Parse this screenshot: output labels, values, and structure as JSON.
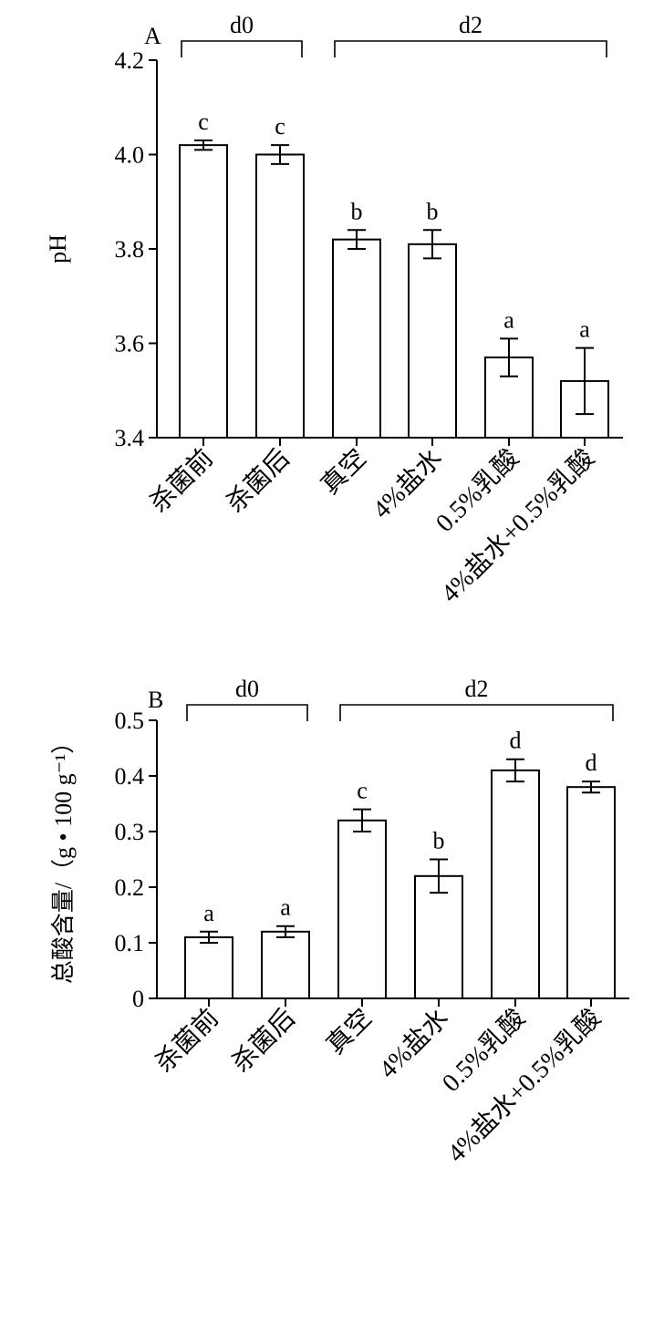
{
  "chart_data": [
    {
      "type": "bar",
      "panel_label": "A",
      "ylabel": "pH",
      "ylim": [
        3.4,
        4.2
      ],
      "yticks": [
        "3.4",
        "3.6",
        "3.8",
        "4.0",
        "4.2"
      ],
      "categories": [
        "杀菌前",
        "杀菌后",
        "真空",
        "4%盐水",
        "0.5%乳酸",
        "4%盐水+0.5%乳酸"
      ],
      "values": [
        4.02,
        4.0,
        3.82,
        3.81,
        3.57,
        3.52
      ],
      "errors": [
        0.01,
        0.02,
        0.02,
        0.03,
        0.04,
        0.07
      ],
      "significance": [
        "c",
        "c",
        "b",
        "b",
        "a",
        "a"
      ],
      "groups": [
        {
          "label": "d0",
          "start": 0,
          "end": 1
        },
        {
          "label": "d2",
          "start": 2,
          "end": 5
        }
      ]
    },
    {
      "type": "bar",
      "panel_label": "B",
      "ylabel": "总酸含量/（g • 100 g⁻¹）",
      "ylim": [
        0,
        0.5
      ],
      "yticks": [
        "0",
        "0.1",
        "0.2",
        "0.3",
        "0.4",
        "0.5"
      ],
      "categories": [
        "杀菌前",
        "杀菌后",
        "真空",
        "4%盐水",
        "0.5%乳酸",
        "4%盐水+0.5%乳酸"
      ],
      "values": [
        0.11,
        0.12,
        0.32,
        0.22,
        0.41,
        0.38
      ],
      "errors": [
        0.01,
        0.01,
        0.02,
        0.03,
        0.02,
        0.01
      ],
      "significance": [
        "a",
        "a",
        "c",
        "b",
        "d",
        "d"
      ],
      "groups": [
        {
          "label": "d0",
          "start": 0,
          "end": 1
        },
        {
          "label": "d2",
          "start": 2,
          "end": 5
        }
      ]
    }
  ]
}
